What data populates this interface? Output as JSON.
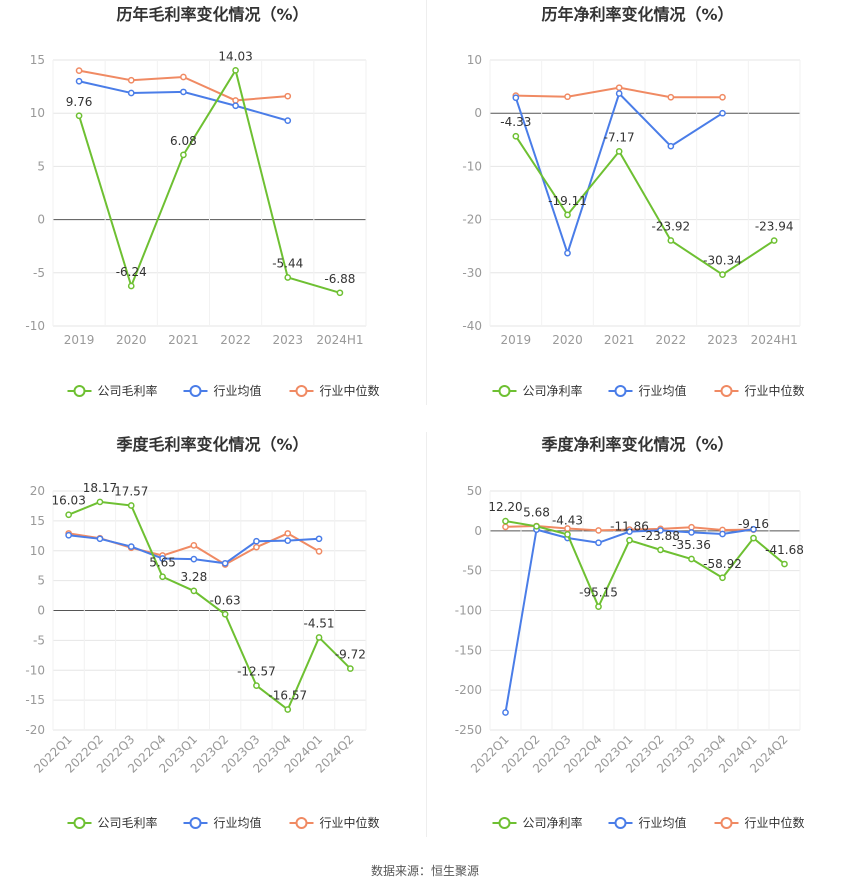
{
  "colors": {
    "company": "#6ec032",
    "avg": "#4a7de8",
    "median": "#f08a63",
    "grid": "#e6e6e6",
    "axis": "#999999"
  },
  "source_text": "数据来源：恒生聚源",
  "chart_data": [
    {
      "type": "line",
      "title": "历年毛利率变化情况（%）",
      "categories": [
        "2019",
        "2020",
        "2021",
        "2022",
        "2023",
        "2024H1"
      ],
      "ylim": [
        -10,
        15
      ],
      "yticks": [
        -10,
        -5,
        0,
        5,
        10,
        15
      ],
      "series": [
        {
          "name": "公司毛利率",
          "values": [
            9.76,
            -6.24,
            6.08,
            14.03,
            -5.44,
            -6.88
          ],
          "labels": [
            "9.76",
            "-6.24",
            "6.08",
            "14.03",
            "-5.44",
            "-6.88"
          ]
        },
        {
          "name": "行业均值",
          "values": [
            13.0,
            11.9,
            12.0,
            10.7,
            9.3,
            null
          ]
        },
        {
          "name": "行业中位数",
          "values": [
            14.0,
            13.1,
            13.4,
            11.2,
            11.6,
            null
          ]
        }
      ]
    },
    {
      "type": "line",
      "title": "历年净利率变化情况（%）",
      "categories": [
        "2019",
        "2020",
        "2021",
        "2022",
        "2023",
        "2024H1"
      ],
      "ylim": [
        -40,
        10
      ],
      "yticks": [
        -40,
        -30,
        -20,
        -10,
        0,
        10
      ],
      "series": [
        {
          "name": "公司净利率",
          "values": [
            -4.33,
            -19.11,
            -7.17,
            -23.92,
            -30.34,
            -23.94
          ],
          "labels": [
            "-4.33",
            "-19.11",
            "-7.17",
            "-23.92",
            "-30.34",
            "-23.94"
          ]
        },
        {
          "name": "行业均值",
          "values": [
            2.9,
            -26.3,
            3.7,
            -6.2,
            0.0,
            null
          ]
        },
        {
          "name": "行业中位数",
          "values": [
            3.3,
            3.1,
            4.8,
            3.0,
            3.0,
            null
          ]
        }
      ]
    },
    {
      "type": "line",
      "title": "季度毛利率变化情况（%）",
      "categories": [
        "2022Q1",
        "2022Q2",
        "2022Q3",
        "2022Q4",
        "2023Q1",
        "2023Q2",
        "2023Q3",
        "2023Q4",
        "2024Q1",
        "2024Q2"
      ],
      "ylim": [
        -20,
        20
      ],
      "yticks": [
        -20,
        -15,
        -10,
        -5,
        0,
        5,
        10,
        15,
        20
      ],
      "series": [
        {
          "name": "公司毛利率",
          "values": [
            16.03,
            18.17,
            17.57,
            5.65,
            3.28,
            -0.63,
            -12.57,
            -16.57,
            -4.51,
            -9.72
          ],
          "labels": [
            "16.03",
            "18.17",
            "17.57",
            "5.65",
            "3.28",
            "-0.63",
            "-12.57",
            "-16.57",
            "-4.51",
            "-9.72"
          ]
        },
        {
          "name": "行业均值",
          "values": [
            12.6,
            12.0,
            10.7,
            8.7,
            8.6,
            7.9,
            11.6,
            11.7,
            12.0,
            null
          ]
        },
        {
          "name": "行业中位数",
          "values": [
            12.9,
            12.1,
            10.5,
            9.2,
            10.9,
            7.7,
            10.6,
            12.9,
            9.9,
            null
          ]
        }
      ]
    },
    {
      "type": "line",
      "title": "季度净利率变化情况（%）",
      "categories": [
        "2022Q1",
        "2022Q2",
        "2022Q3",
        "2022Q4",
        "2023Q1",
        "2023Q2",
        "2023Q3",
        "2023Q4",
        "2024Q1",
        "2024Q2"
      ],
      "ylim": [
        -250,
        50
      ],
      "yticks": [
        -250,
        -200,
        -150,
        -100,
        -50,
        0,
        50
      ],
      "series": [
        {
          "name": "公司净利率",
          "values": [
            12.2,
            5.68,
            -4.43,
            -95.15,
            -11.86,
            -23.88,
            -35.36,
            -58.92,
            -9.16,
            -41.68
          ],
          "labels": [
            "12.20",
            "5.68",
            "-4.43",
            "-95.15",
            "-11.86",
            "-23.88",
            "-35.36",
            "-58.92",
            "-9.16",
            "-41.68"
          ]
        },
        {
          "name": "行业均值",
          "values": [
            -228.0,
            1.5,
            -9.0,
            -15.0,
            -1.0,
            0.5,
            -2.0,
            -4.0,
            2.0,
            null
          ]
        },
        {
          "name": "行业中位数",
          "values": [
            5.0,
            6.0,
            3.0,
            0.5,
            1.5,
            2.5,
            4.5,
            1.0,
            1.5,
            null
          ]
        }
      ]
    }
  ]
}
